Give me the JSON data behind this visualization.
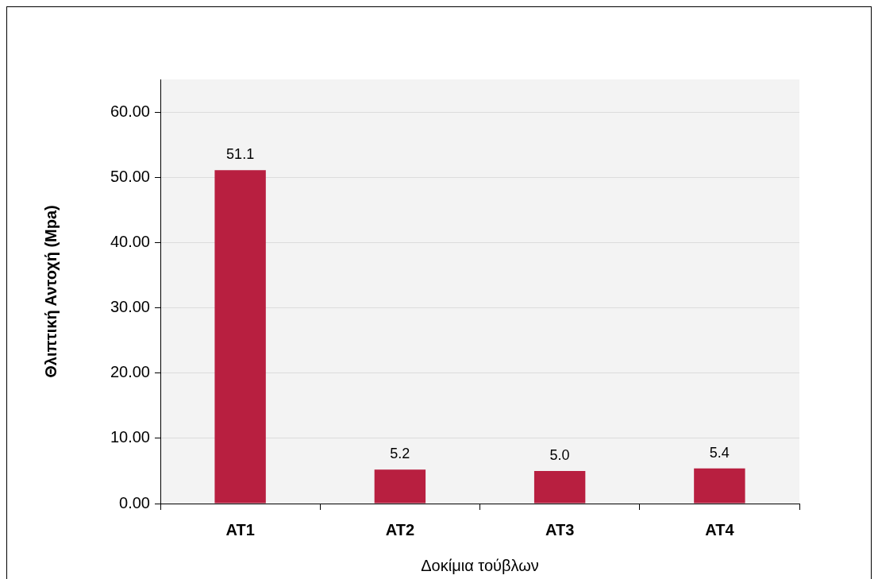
{
  "chart_data": {
    "type": "bar",
    "xlabel": "Δοκίμια τούβλων",
    "ylabel": "Θλιπτική Αντοχή (Mpa)",
    "categories": [
      "AT1",
      "AT2",
      "AT3",
      "AT4"
    ],
    "values": [
      51.1,
      5.2,
      5.0,
      5.4
    ],
    "value_labels": [
      "51.1",
      "5.2",
      "5.0",
      "5.4"
    ],
    "color": "#b81f40",
    "ylim": [
      0,
      65
    ],
    "yticks": [
      {
        "value": 0,
        "label": "0.00"
      },
      {
        "value": 10,
        "label": "10.00"
      },
      {
        "value": 20,
        "label": "20.00"
      },
      {
        "value": 30,
        "label": "30.00"
      },
      {
        "value": 40,
        "label": "40.00"
      },
      {
        "value": 50,
        "label": "50.00"
      },
      {
        "value": 60,
        "label": "60.00"
      }
    ],
    "grid": "y",
    "legend": false
  }
}
